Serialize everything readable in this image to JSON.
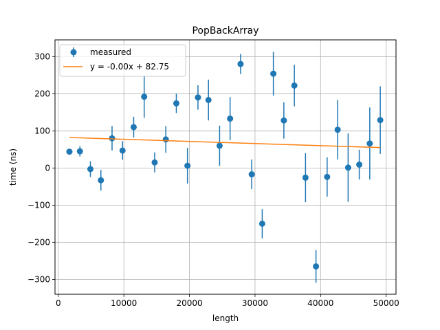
{
  "chart_data": {
    "type": "scatter",
    "title": "PopBackArray",
    "xlabel": "length",
    "ylabel": "time (ns)",
    "xlim": [
      -500,
      51500
    ],
    "ylim": [
      -340,
      345
    ],
    "xticks": [
      0,
      10000,
      20000,
      30000,
      40000,
      50000
    ],
    "yticks": [
      -300,
      -200,
      -100,
      0,
      100,
      200,
      300
    ],
    "xtick_labels": [
      "0",
      "10000",
      "20000",
      "30000",
      "40000",
      "50000"
    ],
    "ytick_labels": [
      "−300",
      "−200",
      "−100",
      "0",
      "100",
      "200",
      "300"
    ],
    "grid": true,
    "legend_position": "upper-left",
    "series": [
      {
        "name": "measured",
        "kind": "errorbar",
        "color": "#1f77b4",
        "points": [
          {
            "x": 1700,
            "y": 44,
            "err": 0
          },
          {
            "x": 3300,
            "y": 45,
            "err": 14
          },
          {
            "x": 4900,
            "y": -3,
            "err": 21
          },
          {
            "x": 6500,
            "y": -33,
            "err": 28
          },
          {
            "x": 8200,
            "y": 80,
            "err": 33
          },
          {
            "x": 9800,
            "y": 47,
            "err": 25
          },
          {
            "x": 11500,
            "y": 110,
            "err": 28
          },
          {
            "x": 13100,
            "y": 192,
            "err": 57
          },
          {
            "x": 14700,
            "y": 15,
            "err": 27
          },
          {
            "x": 16400,
            "y": 77,
            "err": 36
          },
          {
            "x": 18000,
            "y": 174,
            "err": 26
          },
          {
            "x": 19700,
            "y": 6,
            "err": 48
          },
          {
            "x": 21300,
            "y": 190,
            "err": 33
          },
          {
            "x": 22900,
            "y": 183,
            "err": 55
          },
          {
            "x": 24600,
            "y": 60,
            "err": 54
          },
          {
            "x": 26200,
            "y": 133,
            "err": 58
          },
          {
            "x": 27800,
            "y": 280,
            "err": 27
          },
          {
            "x": 29500,
            "y": -17,
            "err": 40
          },
          {
            "x": 31100,
            "y": -150,
            "err": 39
          },
          {
            "x": 32800,
            "y": 254,
            "err": 59
          },
          {
            "x": 34400,
            "y": 128,
            "err": 49
          },
          {
            "x": 36000,
            "y": 222,
            "err": 56
          },
          {
            "x": 37700,
            "y": -26,
            "err": 66
          },
          {
            "x": 39300,
            "y": -265,
            "err": 44
          },
          {
            "x": 41000,
            "y": -24,
            "err": 53
          },
          {
            "x": 42600,
            "y": 103,
            "err": 80
          },
          {
            "x": 44200,
            "y": 1,
            "err": 92
          },
          {
            "x": 45900,
            "y": 9,
            "err": 40
          },
          {
            "x": 47500,
            "y": 66,
            "err": 97
          },
          {
            "x": 49100,
            "y": 129,
            "err": 91
          }
        ]
      },
      {
        "name": "y = -0.00x + 82.75",
        "kind": "line",
        "color": "#ff7f0e",
        "x": [
          1700,
          49100
        ],
        "y": [
          82,
          55
        ]
      }
    ]
  }
}
